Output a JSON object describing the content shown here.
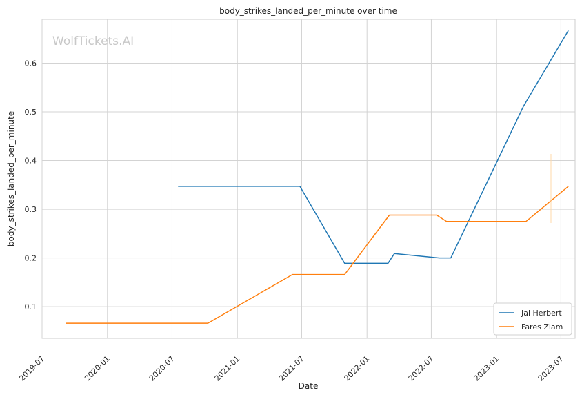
{
  "chart_data": {
    "type": "line",
    "title": "body_strikes_landed_per_minute over time",
    "xlabel": "Date",
    "ylabel": "body_strikes_landed_per_minute",
    "watermark": "WolfTickets.AI",
    "xlim": [
      "2019-07-01",
      "2023-08-10"
    ],
    "ylim": [
      0.035,
      0.69
    ],
    "yticks": [
      0.1,
      0.2,
      0.3,
      0.4,
      0.5,
      0.6
    ],
    "xticks": [
      "2019-07",
      "2020-01",
      "2020-07",
      "2021-01",
      "2021-07",
      "2022-01",
      "2022-07",
      "2023-01",
      "2023-07"
    ],
    "grid": true,
    "legend_position": "bottom-right",
    "series": [
      {
        "name": "Jai Herbert",
        "color": "#1f77b4",
        "points": [
          [
            "2020-07-18",
            0.347
          ],
          [
            "2021-06-26",
            0.347
          ],
          [
            "2021-10-30",
            0.189
          ],
          [
            "2022-03-01",
            0.189
          ],
          [
            "2022-03-19",
            0.209
          ],
          [
            "2022-07-23",
            0.2
          ],
          [
            "2022-08-25",
            0.2
          ],
          [
            "2023-03-18",
            0.512
          ],
          [
            "2023-07-22",
            0.667
          ]
        ]
      },
      {
        "name": "Fares Ziam",
        "color": "#ff7f0e",
        "points": [
          [
            "2019-09-07",
            0.066
          ],
          [
            "2020-10-10",
            0.066
          ],
          [
            "2021-06-05",
            0.166
          ],
          [
            "2021-10-30",
            0.166
          ],
          [
            "2022-03-05",
            0.288
          ],
          [
            "2022-07-16",
            0.288
          ],
          [
            "2022-08-13",
            0.275
          ],
          [
            "2023-03-25",
            0.275
          ],
          [
            "2023-07-22",
            0.347
          ]
        ]
      }
    ]
  }
}
